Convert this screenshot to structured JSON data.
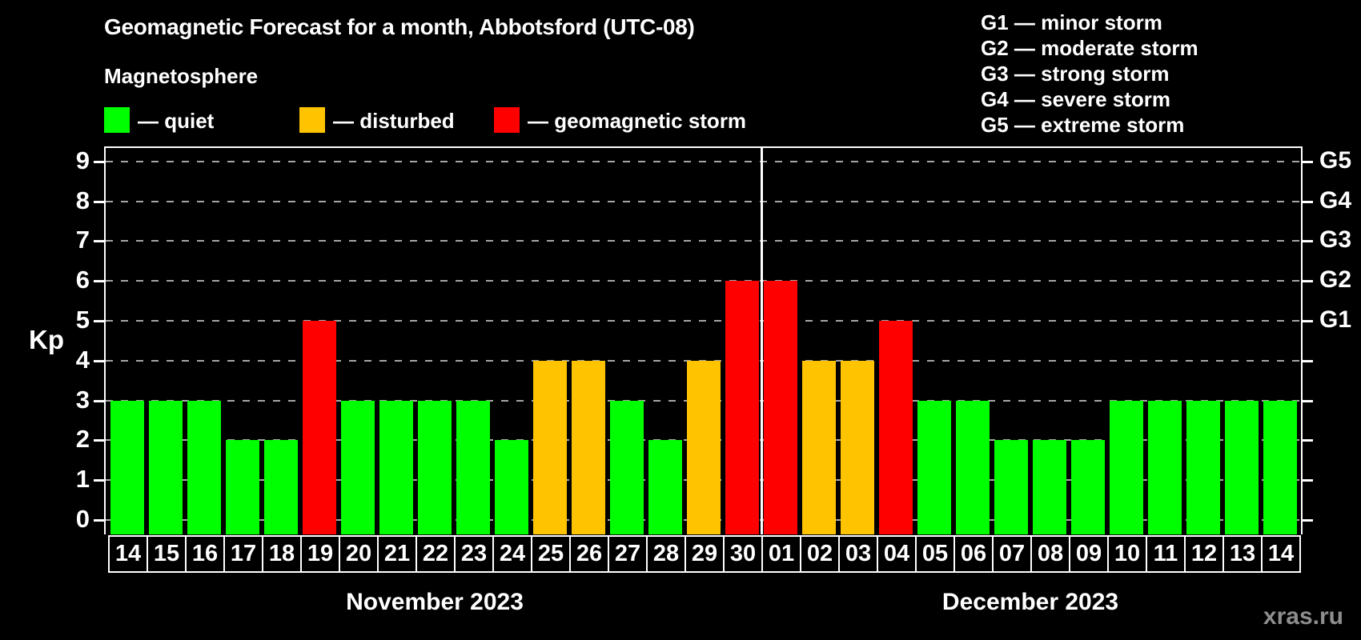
{
  "header": {
    "title": "Geomagnetic Forecast for a month, Abbotsford (UTC-08)",
    "subtitle": "Magnetosphere"
  },
  "legend": {
    "items": [
      {
        "status": "quiet",
        "label": "— quiet",
        "color": "#00ff00"
      },
      {
        "status": "disturbed",
        "label": "— disturbed",
        "color": "#ffc300"
      },
      {
        "status": "storm",
        "label": "— geomagnetic storm",
        "color": "#ff0000"
      }
    ]
  },
  "g_legend": [
    "G1 — minor storm",
    "G2 — moderate storm",
    "G3 — strong storm",
    "G4 — severe storm",
    "G5 — extreme storm"
  ],
  "watermark": "xras.ru",
  "chart_data": {
    "type": "bar",
    "title": "Geomagnetic Forecast for a month, Abbotsford (UTC-08)",
    "xlabel": "",
    "ylabel": "Kp",
    "ylim": [
      0,
      9
    ],
    "grid": true,
    "legend_position": "top",
    "y_ticks": [
      0,
      1,
      2,
      3,
      4,
      5,
      6,
      7,
      8,
      9
    ],
    "right_axis_labels": [
      {
        "text": "G1",
        "kp": 5
      },
      {
        "text": "G2",
        "kp": 6
      },
      {
        "text": "G3",
        "kp": 7
      },
      {
        "text": "G4",
        "kp": 8
      },
      {
        "text": "G5",
        "kp": 9
      }
    ],
    "categories": [
      "14",
      "15",
      "16",
      "17",
      "18",
      "19",
      "20",
      "21",
      "22",
      "23",
      "24",
      "25",
      "26",
      "27",
      "28",
      "29",
      "30",
      "01",
      "02",
      "03",
      "04",
      "05",
      "06",
      "07",
      "08",
      "09",
      "10",
      "11",
      "12",
      "13",
      "14"
    ],
    "series": [
      {
        "name": "Kp forecast",
        "values": [
          3,
          3,
          3,
          2,
          2,
          5,
          3,
          3,
          3,
          3,
          2,
          4,
          4,
          3,
          2,
          4,
          6,
          6,
          4,
          4,
          5,
          3,
          3,
          2,
          2,
          2,
          3,
          3,
          3,
          3,
          3
        ]
      }
    ],
    "statuses": [
      "quiet",
      "quiet",
      "quiet",
      "quiet",
      "quiet",
      "storm",
      "quiet",
      "quiet",
      "quiet",
      "quiet",
      "quiet",
      "disturbed",
      "disturbed",
      "quiet",
      "quiet",
      "disturbed",
      "storm",
      "storm",
      "disturbed",
      "disturbed",
      "storm",
      "quiet",
      "quiet",
      "quiet",
      "quiet",
      "quiet",
      "quiet",
      "quiet",
      "quiet",
      "quiet",
      "quiet"
    ],
    "status_colors": {
      "quiet": "#00ff00",
      "disturbed": "#ffc300",
      "storm": "#ff0000"
    },
    "months": [
      {
        "label": "November 2023",
        "count": 17
      },
      {
        "label": "December 2023",
        "count": 14
      }
    ]
  }
}
